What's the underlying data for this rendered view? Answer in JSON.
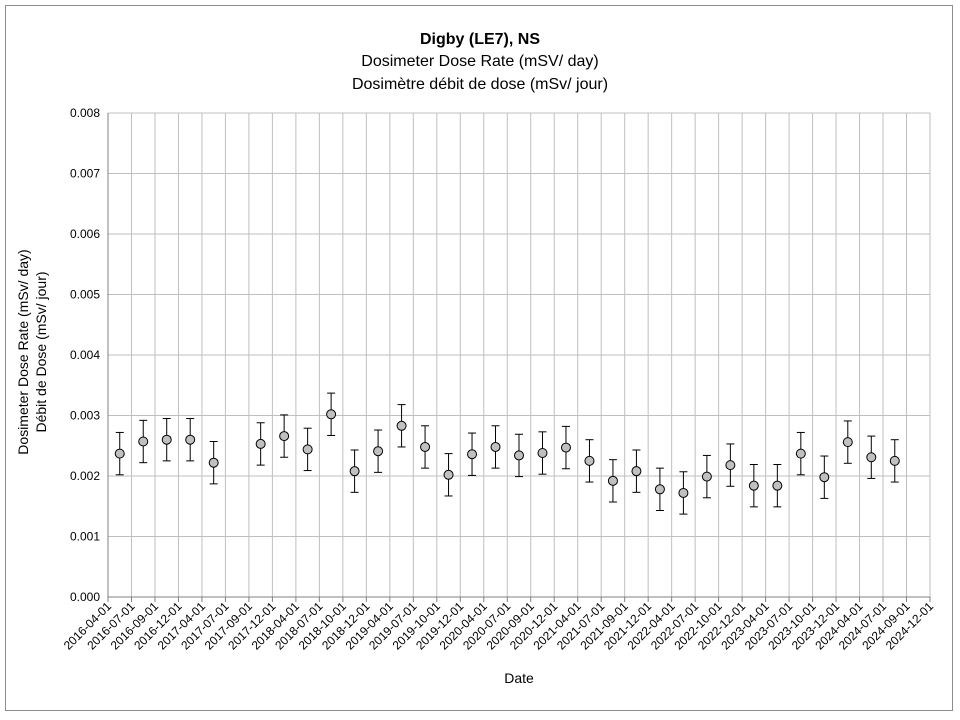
{
  "chart_data": {
    "type": "scatter",
    "title": "Digby (LE7), NS",
    "subtitle": [
      "Dosimeter Dose Rate (mSV/ day)",
      "Dosimètre débit de dose (mSv/ jour)"
    ],
    "xlabel": "Date",
    "ylabel": [
      "Dosimeter Dose Rate (mSv/ day)",
      "Débit de Dose (mSv/ jour)"
    ],
    "ylim": [
      0,
      0.008
    ],
    "yticks": [
      "0.000",
      "0.001",
      "0.002",
      "0.003",
      "0.004",
      "0.005",
      "0.006",
      "0.007",
      "0.008"
    ],
    "categories": [
      "2016-04-01",
      "2016-07-01",
      "2016-09-01",
      "2016-12-01",
      "2017-04-01",
      "2017-07-01",
      "2017-09-01",
      "2017-12-01",
      "2018-04-01",
      "2018-07-01",
      "2018-10-01",
      "2018-12-01",
      "2019-04-01",
      "2019-07-01",
      "2019-10-01",
      "2019-12-01",
      "2020-04-01",
      "2020-07-01",
      "2020-09-01",
      "2020-12-01",
      "2021-04-01",
      "2021-07-01",
      "2021-09-01",
      "2021-12-01",
      "2022-04-01",
      "2022-07-01",
      "2022-10-01",
      "2022-12-01",
      "2023-04-01",
      "2023-07-01",
      "2023-10-01",
      "2023-12-01",
      "2024-04-01",
      "2024-07-01",
      "2024-09-01",
      "2024-12-01"
    ],
    "values": [
      0.00237,
      0.00257,
      0.0026,
      0.0026,
      0.00222,
      null,
      0.00253,
      0.00266,
      0.00244,
      0.00302,
      0.00208,
      0.00241,
      0.00283,
      0.00248,
      0.00202,
      0.00236,
      0.00248,
      0.00234,
      0.00238,
      0.00247,
      0.00225,
      0.00192,
      0.00208,
      0.00178,
      0.00172,
      0.00199,
      0.00218,
      0.00184,
      0.00184,
      0.00237,
      0.00198,
      0.00256,
      0.00231,
      0.00225,
      null,
      null
    ],
    "error_bar": 0.00035,
    "grid": true,
    "colors": {
      "marker_fill": "#c0c0c0",
      "marker_stroke": "#000000",
      "grid": "#bfbfbf",
      "error_bar": "#000000"
    }
  }
}
